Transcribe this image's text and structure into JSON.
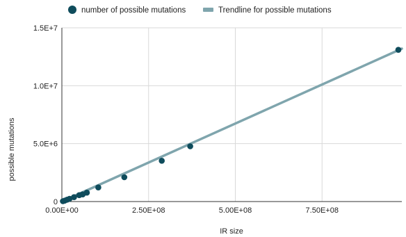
{
  "chart_data": {
    "type": "scatter",
    "title": "",
    "xlabel": "IR size",
    "ylabel": "possible mutations",
    "xlim": [
      0,
      980000000
    ],
    "ylim": [
      0,
      15000000
    ],
    "grid": true,
    "legend_position": "top",
    "x_ticks": [
      {
        "value": 0,
        "label": "0.00E+00"
      },
      {
        "value": 250000000,
        "label": "2.50E+08"
      },
      {
        "value": 500000000,
        "label": "5.00E+08"
      },
      {
        "value": 750000000,
        "label": "7.50E+08"
      }
    ],
    "y_ticks": [
      {
        "value": 0,
        "label": "0"
      },
      {
        "value": 5000000,
        "label": "5.0E+6"
      },
      {
        "value": 10000000,
        "label": "1.0E+7"
      },
      {
        "value": 15000000,
        "label": "1.5E+7"
      }
    ],
    "series": [
      {
        "name": "number of possible mutations",
        "kind": "points",
        "color": "#0f4c5c",
        "x": [
          3000000,
          8000000,
          15000000,
          22000000,
          35000000,
          50000000,
          60000000,
          72000000,
          105000000,
          180000000,
          288000000,
          370000000,
          970000000
        ],
        "y": [
          30000,
          80000,
          160000,
          240000,
          380000,
          550000,
          620000,
          770000,
          1220000,
          2100000,
          3520000,
          4770000,
          13100000
        ]
      },
      {
        "name": "Trendline for possible mutations",
        "kind": "trendline",
        "color": "#7fa5ad",
        "x": [
          0,
          980000000
        ],
        "y": [
          0,
          13200000
        ]
      }
    ]
  }
}
